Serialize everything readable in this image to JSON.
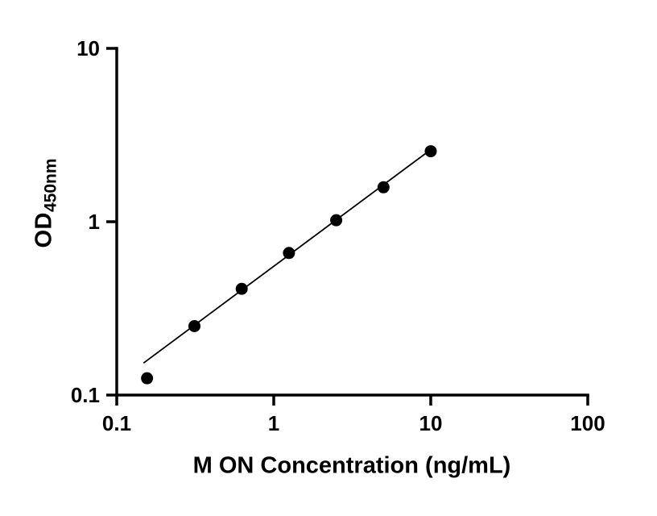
{
  "chart_data": {
    "type": "scatter",
    "title": "",
    "xlabel": "M ON Concentration (ng/mL)",
    "ylabel": "OD",
    "ylabel_sub": "450nm",
    "xscale": "log",
    "yscale": "log",
    "xlim": [
      0.1,
      100
    ],
    "ylim": [
      0.1,
      10
    ],
    "x_ticks": [
      "0.1",
      "1",
      "10",
      "100"
    ],
    "y_ticks": [
      "0.1",
      "1",
      "10"
    ],
    "grid": false,
    "legend": "none",
    "points": [
      {
        "x": 0.156,
        "y": 0.125
      },
      {
        "x": 0.3125,
        "y": 0.25
      },
      {
        "x": 0.625,
        "y": 0.41
      },
      {
        "x": 1.25,
        "y": 0.66
      },
      {
        "x": 2.5,
        "y": 1.02
      },
      {
        "x": 5,
        "y": 1.58
      },
      {
        "x": 10,
        "y": 2.55
      }
    ],
    "trendline": {
      "x1": 0.148,
      "y1": 0.153,
      "x2": 9.8,
      "y2": 2.57
    },
    "marker_color": "#000000",
    "line_color": "#000000",
    "axis_color": "#000000",
    "background_color": "#ffffff"
  }
}
